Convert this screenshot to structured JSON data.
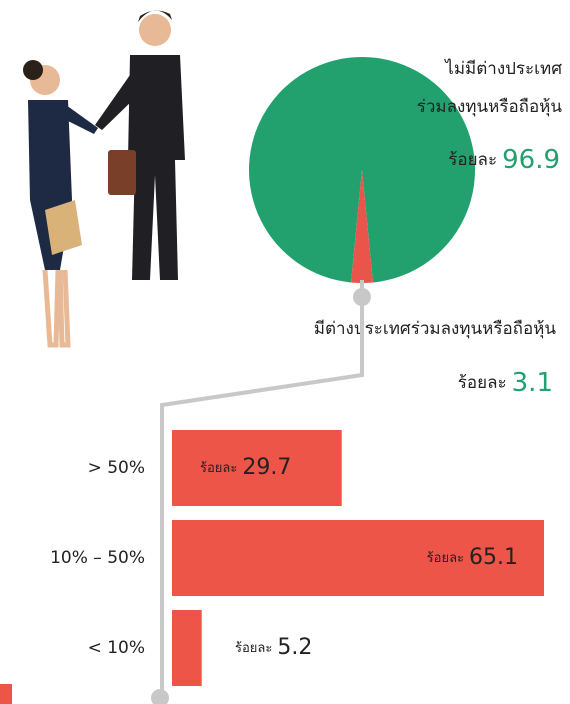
{
  "chart_data": [
    {
      "type": "pie",
      "categories": [
        "ไม่มีต่างประเทศ\nร่วมลงทุนหรือถือหุ้น",
        "มีต่างประเทศร่วมลงทุนหรือถือหุ้น"
      ],
      "values": [
        96.9,
        3.1
      ],
      "colors": [
        "#22a06e",
        "#e9554a"
      ],
      "value_prefix": "ร้อยละ"
    },
    {
      "type": "bar",
      "orientation": "horizontal",
      "categories": [
        "> 50%",
        "10% – 50%",
        "< 10%"
      ],
      "values": [
        29.7,
        65.1,
        5.2
      ],
      "color": "#ec5548",
      "value_prefix": "ร้อยละ"
    }
  ]
}
